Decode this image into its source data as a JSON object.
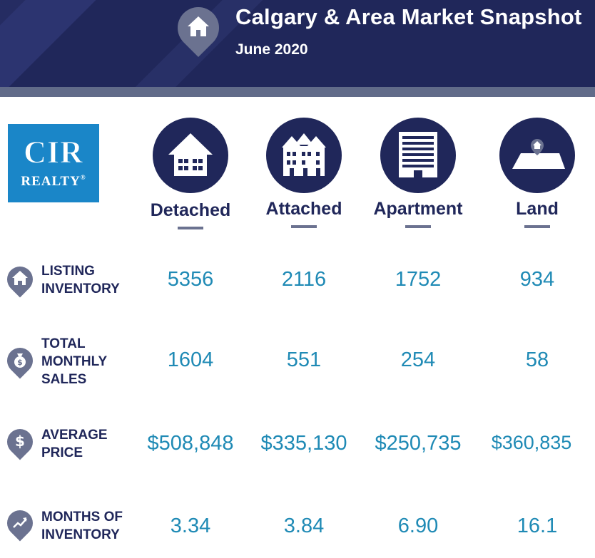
{
  "header": {
    "title": "Calgary & Area Market Snapshot",
    "subtitle": "June 2020"
  },
  "logo": {
    "line1": "CIR",
    "line2": "REALTY",
    "registered": "®"
  },
  "categories": [
    {
      "label": "Detached",
      "icon": "detached-house-icon"
    },
    {
      "label": "Attached",
      "icon": "attached-house-icon"
    },
    {
      "label": "Apartment",
      "icon": "apartment-building-icon"
    },
    {
      "label": "Land",
      "icon": "land-plot-icon"
    }
  ],
  "rows": [
    {
      "label_lines": [
        "LISTING",
        "INVENTORY"
      ],
      "icon": "home-pin-icon",
      "values": [
        "5356",
        "2116",
        "1752",
        "934"
      ]
    },
    {
      "label_lines": [
        "TOTAL",
        "MONTHLY",
        "SALES"
      ],
      "icon": "money-bag-pin-icon",
      "values": [
        "1604",
        "551",
        "254",
        "58"
      ]
    },
    {
      "label_lines": [
        "AVERAGE",
        "PRICE"
      ],
      "icon": "dollar-pin-icon",
      "values": [
        "$508,848",
        "$335,130",
        "$250,735",
        "$360,835"
      ]
    },
    {
      "label_lines": [
        "MONTHS OF",
        "INVENTORY"
      ],
      "icon": "trend-pin-icon",
      "values": [
        "3.34",
        "3.84",
        "6.90",
        "16.1"
      ]
    }
  ],
  "colors": {
    "navy": "#20275a",
    "slate": "#6b7290",
    "value_blue": "#1f8ab5",
    "logo_blue": "#1a86c8"
  }
}
